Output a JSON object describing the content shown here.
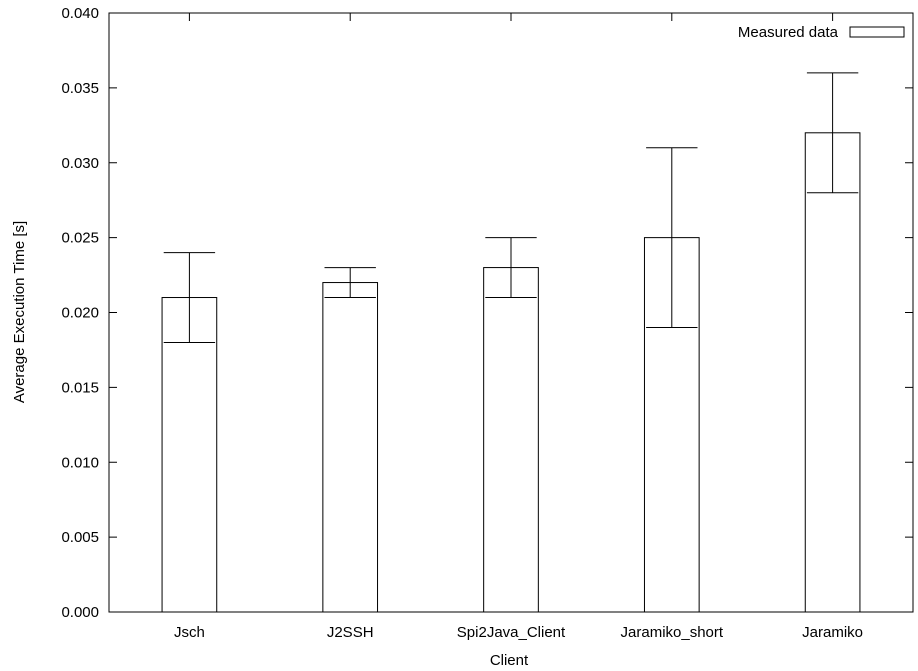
{
  "chart_data": {
    "type": "bar",
    "title": "",
    "xlabel": "Client",
    "ylabel": "Average Execution Time [s]",
    "categories": [
      "Jsch",
      "J2SSH",
      "Spi2Java_Client",
      "Jaramiko_short",
      "Jaramiko"
    ],
    "series": [
      {
        "name": "Measured data",
        "values": [
          0.021,
          0.022,
          0.023,
          0.025,
          0.032
        ],
        "error_low": [
          0.018,
          0.021,
          0.021,
          0.019,
          0.028
        ],
        "error_high": [
          0.024,
          0.023,
          0.025,
          0.031,
          0.036
        ]
      }
    ],
    "ylim": [
      0,
      0.04
    ],
    "yticks": [
      "0.000",
      "0.005",
      "0.010",
      "0.015",
      "0.020",
      "0.025",
      "0.030",
      "0.035",
      "0.040"
    ],
    "grid": false,
    "legend": "top-right",
    "colors": {
      "bar_fill": "#ffffff",
      "stroke": "#000000"
    }
  }
}
